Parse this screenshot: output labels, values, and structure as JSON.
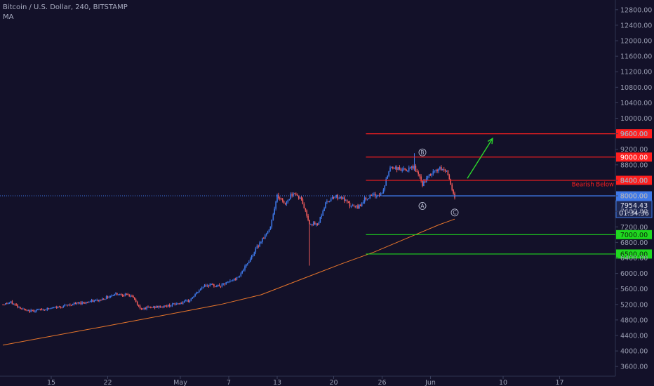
{
  "header": {
    "title": "Bitcoin / U.S. Dollar, 240, BITSTAMP",
    "indicator": "MA"
  },
  "colors": {
    "background": "#131129",
    "up_candle": "#3e78e8",
    "down_candle": "#ef5b5b",
    "moving_average": "#e8762b",
    "resistance": "#ff1f1f",
    "support": "#1fd81f",
    "price_line": "#3e78e8",
    "arrow": "#2bd82b",
    "axis_text": "#9a9eb2"
  },
  "chart_data": {
    "type": "candlestick",
    "symbol": "Bitcoin / U.S. Dollar",
    "interval": "240",
    "exchange": "BITSTAMP",
    "y_axis": {
      "ticks": [
        "3600.00",
        "4000.00",
        "4400.00",
        "4800.00",
        "5200.00",
        "5600.00",
        "6000.00",
        "6400.00",
        "6800.00",
        "7200.00",
        "7600.00",
        "8000.00",
        "8400.00",
        "8800.00",
        "9200.00",
        "9600.00",
        "10000.00",
        "10400.00",
        "10800.00",
        "11200.00",
        "11600.00",
        "12000.00",
        "12400.00",
        "12800.00"
      ],
      "range": [
        3350,
        13050
      ]
    },
    "x_axis": {
      "labels": [
        "15",
        "22",
        "May",
        "7",
        "13",
        "20",
        "26",
        "Jun",
        "10",
        "17"
      ]
    },
    "price_path": [
      {
        "x": "Apr 9",
        "y": 5200
      },
      {
        "x": "Apr 10",
        "y": 5250
      },
      {
        "x": "Apr 12",
        "y": 5020
      },
      {
        "x": "Apr 15",
        "y": 5100
      },
      {
        "x": "Apr 18",
        "y": 5220
      },
      {
        "x": "Apr 21",
        "y": 5310
      },
      {
        "x": "Apr 23",
        "y": 5480
      },
      {
        "x": "Apr 25",
        "y": 5420
      },
      {
        "x": "Apr 26",
        "y": 5100
      },
      {
        "x": "Apr 29",
        "y": 5150
      },
      {
        "x": "May 2",
        "y": 5280
      },
      {
        "x": "May 4",
        "y": 5700
      },
      {
        "x": "May 6",
        "y": 5680
      },
      {
        "x": "May 8",
        "y": 5880
      },
      {
        "x": "May 9",
        "y": 6150
      },
      {
        "x": "May 11",
        "y": 6850
      },
      {
        "x": "May 12",
        "y": 7100
      },
      {
        "x": "May 13",
        "y": 8000
      },
      {
        "x": "May 14",
        "y": 7800
      },
      {
        "x": "May 15",
        "y": 8100
      },
      {
        "x": "May 16",
        "y": 7900
      },
      {
        "x": "May 17",
        "y": 7300
      },
      {
        "x": "May 18",
        "y": 7250
      },
      {
        "x": "May 19",
        "y": 7800
      },
      {
        "x": "May 20",
        "y": 8000
      },
      {
        "x": "May 21",
        "y": 7950
      },
      {
        "x": "May 22",
        "y": 7750
      },
      {
        "x": "May 23",
        "y": 7700
      },
      {
        "x": "May 24",
        "y": 7950
      },
      {
        "x": "May 25",
        "y": 8000
      },
      {
        "x": "May 26",
        "y": 8050
      },
      {
        "x": "May 27",
        "y": 8750
      },
      {
        "x": "May 28",
        "y": 8700
      },
      {
        "x": "May 29",
        "y": 8650
      },
      {
        "x": "May 30",
        "y": 8750
      },
      {
        "x": "May 31",
        "y": 8300
      },
      {
        "x": "Jun 1",
        "y": 8550
      },
      {
        "x": "Jun 2",
        "y": 8700
      },
      {
        "x": "Jun 3",
        "y": 8650
      },
      {
        "x": "Jun 4",
        "y": 7954.43
      }
    ],
    "moving_average": [
      {
        "x": "Apr 9",
        "y": 4150
      },
      {
        "x": "Apr 22",
        "y": 4650
      },
      {
        "x": "May 1",
        "y": 5000
      },
      {
        "x": "May 6",
        "y": 5200
      },
      {
        "x": "May 11",
        "y": 5450
      },
      {
        "x": "May 16",
        "y": 5850
      },
      {
        "x": "May 21",
        "y": 6250
      },
      {
        "x": "May 25",
        "y": 6550
      },
      {
        "x": "May 29",
        "y": 6900
      },
      {
        "x": "Jun 2",
        "y": 7250
      },
      {
        "x": "Jun 4",
        "y": 7400
      }
    ],
    "levels": [
      {
        "name": "resistance-9600",
        "price": 9600,
        "label": "9600.00",
        "kind": "resistance"
      },
      {
        "name": "resistance-9000",
        "price": 9000,
        "label": "9000.00",
        "kind": "resistance"
      },
      {
        "name": "resistance-8400",
        "price": 8400,
        "label": "8400.00",
        "kind": "resistance"
      },
      {
        "name": "support-7000",
        "price": 7000,
        "label": "7000.00",
        "kind": "support"
      },
      {
        "name": "support-6500",
        "price": 6500,
        "label": "6500.00",
        "kind": "support"
      }
    ],
    "current_price": {
      "line": 8000,
      "line_label": "8000.00",
      "last": 7954.43,
      "last_label": "7954.43",
      "countdown": "01:34:36"
    },
    "annotations": {
      "bearish_text": "Bearish Below",
      "wave_labels": [
        {
          "label": "A",
          "x": "May 31",
          "y": 7740
        },
        {
          "label": "B",
          "x": "May 31",
          "y": 9120
        },
        {
          "label": "C",
          "x": "Jun 4",
          "y": 7570
        }
      ],
      "arrow": {
        "from": {
          "x": "Jun 4",
          "y": 8450
        },
        "to": {
          "x": "Jun 8",
          "y": 9480
        }
      }
    }
  }
}
